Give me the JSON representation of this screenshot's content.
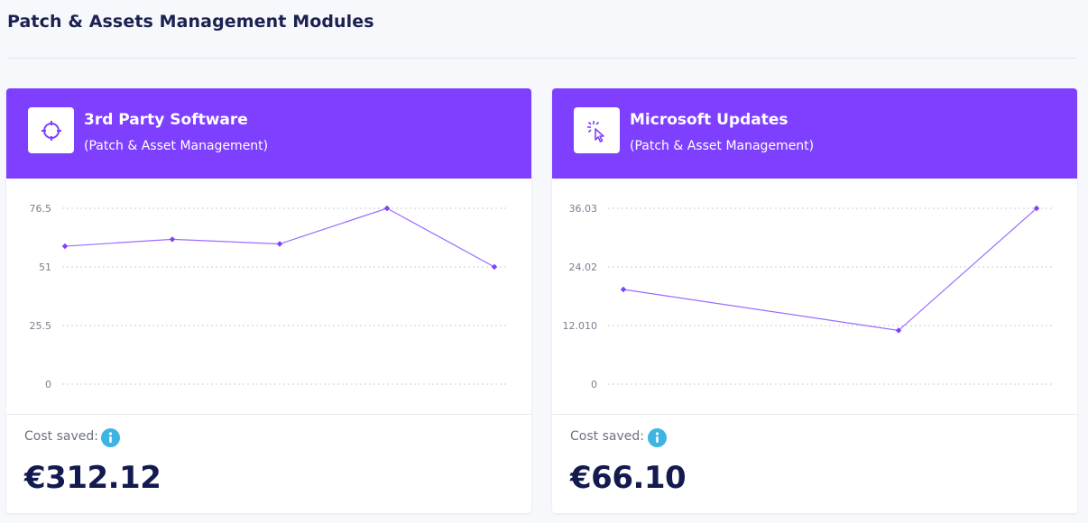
{
  "page": {
    "title": "Patch & Assets Management Modules"
  },
  "colors": {
    "accent": "#7f3fff",
    "info": "#3db4e4",
    "value": "#121a4f"
  },
  "cards": [
    {
      "title": "3rd Party Software",
      "subtitle": "(Patch & Asset Management)",
      "icon": "crosshair-icon",
      "cost_label": "Cost saved:",
      "cost_value": "€312.12",
      "chart_data": {
        "type": "line",
        "y_ticks": [
          "76.5",
          "51",
          "25.5",
          "0"
        ],
        "ylim": [
          0,
          76.5
        ],
        "values": [
          60,
          63,
          61,
          76.5,
          51
        ]
      }
    },
    {
      "title": "Microsoft Updates",
      "subtitle": "(Patch & Asset Management)",
      "icon": "cursor-click-icon",
      "cost_label": "Cost saved:",
      "cost_value": "€66.10",
      "chart_data": {
        "type": "line",
        "y_ticks": [
          "36.03",
          "24.02",
          "12.010",
          "0"
        ],
        "ylim": [
          0,
          36.03
        ],
        "values": [
          19.4,
          11.0,
          36.03
        ]
      }
    }
  ]
}
